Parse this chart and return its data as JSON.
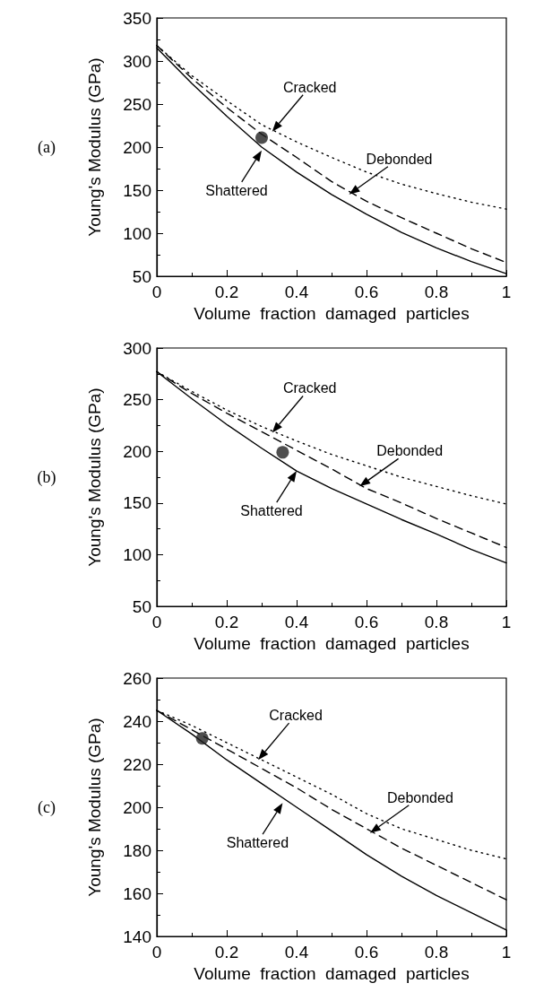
{
  "chart_data": [
    {
      "type": "line",
      "xlabel": "Volume  fraction  damaged  particles",
      "ylabel": "Young's Modulus (GPa)",
      "xlim": [
        0,
        1
      ],
      "xticks": [
        0,
        0.2,
        0.4,
        0.6,
        0.8,
        1
      ],
      "ylim": [
        50,
        350
      ],
      "yticks": [
        50,
        100,
        150,
        200,
        250,
        300,
        350
      ],
      "annotations": [
        "(a)",
        {
          "text": "Cracked",
          "x": 0.33,
          "y": 218
        },
        {
          "text": "Debonded",
          "x": 0.55,
          "y": 145
        },
        {
          "text": "Shattered",
          "x": 0.3,
          "y": 196
        }
      ],
      "series": [
        {
          "color": "#000000",
          "line_style": "solid",
          "marker": "none",
          "x": [
            0,
            0.1,
            0.2,
            0.3,
            0.4,
            0.5,
            0.6,
            0.7,
            0.8,
            0.9,
            1
          ],
          "values": [
            315,
            274,
            236,
            200,
            171,
            145,
            122,
            101,
            83,
            67,
            53
          ]
        },
        {
          "color": "#000000",
          "line_style": "dashed",
          "marker": "none",
          "x": [
            0,
            0.1,
            0.2,
            0.3,
            0.4,
            0.5,
            0.6,
            0.7,
            0.8,
            0.9,
            1
          ],
          "values": [
            318,
            280,
            246,
            215,
            188,
            160,
            137,
            118,
            100,
            82,
            66
          ]
        },
        {
          "color": "#000000",
          "line_style": "dotted",
          "marker": "none",
          "x": [
            0,
            0.1,
            0.2,
            0.3,
            0.4,
            0.5,
            0.6,
            0.7,
            0.8,
            0.9,
            1
          ],
          "values": [
            318,
            283,
            254,
            226,
            206,
            188,
            171,
            157,
            146,
            136,
            128
          ]
        },
        {
          "type": "scatter",
          "color": "#222222",
          "marker": "circle",
          "x": [
            0.3
          ],
          "values": [
            211
          ]
        }
      ]
    },
    {
      "type": "line",
      "xlabel": "Volume  fraction  damaged  particles",
      "ylabel": "Young's Modulus (GPa)",
      "xlim": [
        0,
        1
      ],
      "xticks": [
        0,
        0.2,
        0.4,
        0.6,
        0.8,
        1
      ],
      "ylim": [
        50,
        300
      ],
      "yticks": [
        50,
        100,
        150,
        200,
        250,
        300
      ],
      "annotations": [
        "(b)",
        {
          "text": "Cracked",
          "x": 0.33,
          "y": 218
        },
        {
          "text": "Debonded",
          "x": 0.58,
          "y": 166
        },
        {
          "text": "Shattered",
          "x": 0.4,
          "y": 181
        }
      ],
      "series": [
        {
          "color": "#000000",
          "line_style": "solid",
          "marker": "none",
          "x": [
            0,
            0.1,
            0.2,
            0.3,
            0.4,
            0.5,
            0.6,
            0.7,
            0.8,
            0.9,
            1
          ],
          "values": [
            277,
            251,
            226,
            203,
            181,
            164,
            149,
            134,
            120,
            105,
            92
          ]
        },
        {
          "color": "#000000",
          "line_style": "dashed",
          "marker": "none",
          "x": [
            0,
            0.1,
            0.2,
            0.3,
            0.4,
            0.5,
            0.6,
            0.7,
            0.8,
            0.9,
            1
          ],
          "values": [
            277,
            256,
            237,
            219,
            201,
            183,
            164,
            150,
            135,
            121,
            107
          ]
        },
        {
          "color": "#000000",
          "line_style": "dotted",
          "marker": "none",
          "x": [
            0,
            0.1,
            0.2,
            0.3,
            0.4,
            0.5,
            0.6,
            0.7,
            0.8,
            0.9,
            1
          ],
          "values": [
            277,
            258,
            240,
            224,
            210,
            197,
            186,
            175,
            166,
            157,
            149
          ]
        },
        {
          "type": "scatter",
          "color": "#222222",
          "marker": "circle",
          "x": [
            0.36
          ],
          "values": [
            199
          ]
        }
      ]
    },
    {
      "type": "line",
      "xlabel": "Volume  fraction  damaged  particles",
      "ylabel": "Young's Modulus (GPa)",
      "xlim": [
        0,
        1
      ],
      "xticks": [
        0,
        0.2,
        0.4,
        0.6,
        0.8,
        1
      ],
      "ylim": [
        140,
        260
      ],
      "yticks": [
        140,
        160,
        180,
        200,
        220,
        240,
        260
      ],
      "annotations": [
        "(c)",
        {
          "text": "Cracked",
          "x": 0.29,
          "y": 222
        },
        {
          "text": "Debonded",
          "x": 0.61,
          "y": 188
        },
        {
          "text": "Shattered",
          "x": 0.36,
          "y": 202
        }
      ],
      "series": [
        {
          "color": "#000000",
          "line_style": "solid",
          "marker": "none",
          "x": [
            0,
            0.1,
            0.2,
            0.3,
            0.4,
            0.5,
            0.6,
            0.7,
            0.8,
            0.9,
            1
          ],
          "values": [
            245,
            234,
            222,
            211,
            200,
            189,
            178,
            168,
            159,
            151,
            143
          ]
        },
        {
          "color": "#000000",
          "line_style": "dashed",
          "marker": "none",
          "x": [
            0,
            0.1,
            0.2,
            0.3,
            0.4,
            0.5,
            0.6,
            0.7,
            0.8,
            0.9,
            1
          ],
          "values": [
            245,
            236,
            227,
            218,
            209,
            199,
            190,
            181,
            173,
            165,
            157
          ]
        },
        {
          "color": "#000000",
          "line_style": "dotted",
          "marker": "none",
          "x": [
            0,
            0.1,
            0.2,
            0.3,
            0.4,
            0.5,
            0.6,
            0.7,
            0.8,
            0.9,
            1
          ],
          "values": [
            245,
            238,
            230,
            222,
            214,
            206,
            197,
            190,
            185,
            180,
            176
          ]
        },
        {
          "type": "scatter",
          "color": "#222222",
          "marker": "circle",
          "x": [
            0.13
          ],
          "values": [
            232
          ]
        }
      ]
    }
  ]
}
